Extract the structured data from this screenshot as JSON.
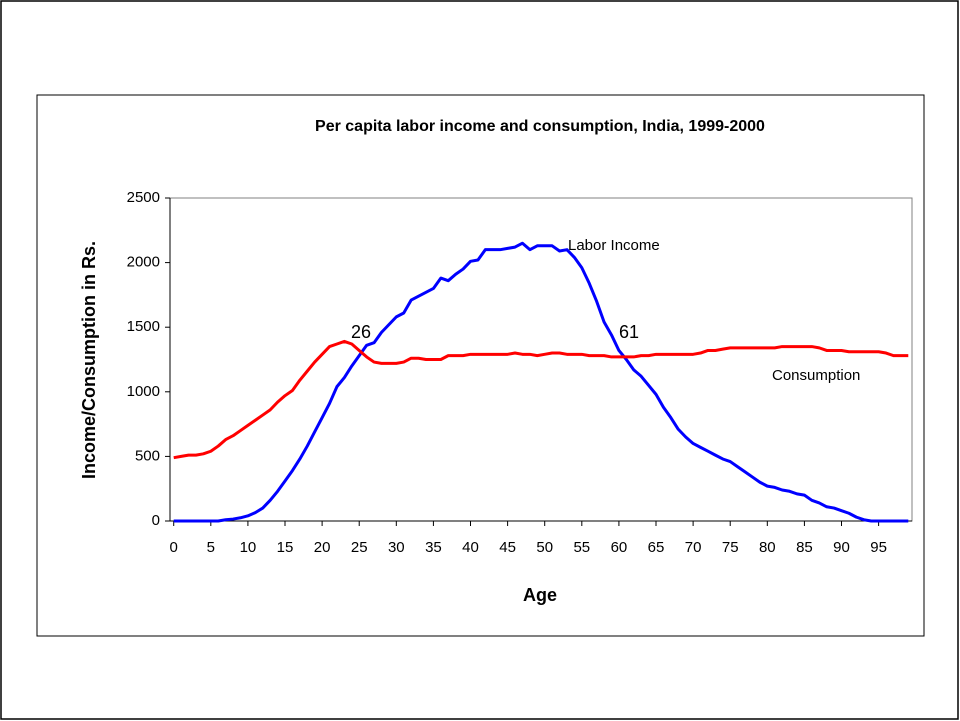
{
  "chart_data": {
    "type": "line",
    "title": "Per capita labor income and consumption, India, 1999-2000",
    "x_label": "Age",
    "y_label": "Income/Consumption in Rs.",
    "x": [
      0,
      1,
      2,
      3,
      4,
      5,
      6,
      7,
      8,
      9,
      10,
      11,
      12,
      13,
      14,
      15,
      16,
      17,
      18,
      19,
      20,
      21,
      22,
      23,
      24,
      25,
      26,
      27,
      28,
      29,
      30,
      31,
      32,
      33,
      34,
      35,
      36,
      37,
      38,
      39,
      40,
      41,
      42,
      43,
      44,
      45,
      46,
      47,
      48,
      49,
      50,
      51,
      52,
      53,
      54,
      55,
      56,
      57,
      58,
      59,
      60,
      61,
      62,
      63,
      64,
      65,
      66,
      67,
      68,
      69,
      70,
      71,
      72,
      73,
      74,
      75,
      76,
      77,
      78,
      79,
      80,
      81,
      82,
      83,
      84,
      85,
      86,
      87,
      88,
      89,
      90,
      91,
      92,
      93,
      94,
      95,
      96,
      97,
      98,
      99
    ],
    "series": [
      {
        "name": "Labor Income",
        "color": "#0000ff",
        "values": [
          0,
          0,
          0,
          0,
          0,
          0,
          0,
          10,
          15,
          25,
          40,
          65,
          100,
          160,
          230,
          310,
          390,
          480,
          580,
          690,
          800,
          910,
          1040,
          1110,
          1200,
          1280,
          1360,
          1380,
          1460,
          1520,
          1580,
          1610,
          1710,
          1740,
          1770,
          1800,
          1880,
          1860,
          1910,
          1950,
          2010,
          2020,
          2100,
          2100,
          2100,
          2110,
          2120,
          2150,
          2100,
          2130,
          2130,
          2130,
          2090,
          2100,
          2040,
          1960,
          1840,
          1700,
          1540,
          1440,
          1320,
          1250,
          1170,
          1120,
          1050,
          980,
          880,
          800,
          710,
          650,
          600,
          570,
          540,
          510,
          480,
          460,
          420,
          380,
          340,
          300,
          270,
          260,
          240,
          230,
          210,
          200,
          160,
          140,
          110,
          100,
          80,
          60,
          30,
          10,
          0,
          0,
          0,
          0,
          0,
          0
        ]
      },
      {
        "name": "Consumption",
        "color": "#ff0000",
        "values": [
          490,
          500,
          510,
          510,
          520,
          540,
          580,
          630,
          660,
          700,
          740,
          780,
          820,
          860,
          920,
          970,
          1010,
          1090,
          1160,
          1230,
          1290,
          1350,
          1370,
          1390,
          1370,
          1320,
          1270,
          1230,
          1220,
          1220,
          1220,
          1230,
          1260,
          1260,
          1250,
          1250,
          1250,
          1280,
          1280,
          1280,
          1290,
          1290,
          1290,
          1290,
          1290,
          1290,
          1300,
          1290,
          1290,
          1280,
          1290,
          1300,
          1300,
          1290,
          1290,
          1290,
          1280,
          1280,
          1280,
          1270,
          1270,
          1270,
          1270,
          1280,
          1280,
          1290,
          1290,
          1290,
          1290,
          1290,
          1290,
          1300,
          1320,
          1320,
          1330,
          1340,
          1340,
          1340,
          1340,
          1340,
          1340,
          1340,
          1350,
          1350,
          1350,
          1350,
          1350,
          1340,
          1320,
          1320,
          1320,
          1310,
          1310,
          1310,
          1310,
          1310,
          1300,
          1280,
          1280,
          1280
        ]
      }
    ],
    "annotations": [
      "26",
      "61"
    ],
    "xlim": [
      -0.5,
      99.5
    ],
    "xticks": [
      0,
      5,
      10,
      15,
      20,
      25,
      30,
      35,
      40,
      45,
      50,
      55,
      60,
      65,
      70,
      75,
      80,
      85,
      90,
      95
    ],
    "ylim": [
      0,
      2500
    ],
    "yticks": [
      0,
      500,
      1000,
      1500,
      2000,
      2500
    ],
    "grid": false
  }
}
